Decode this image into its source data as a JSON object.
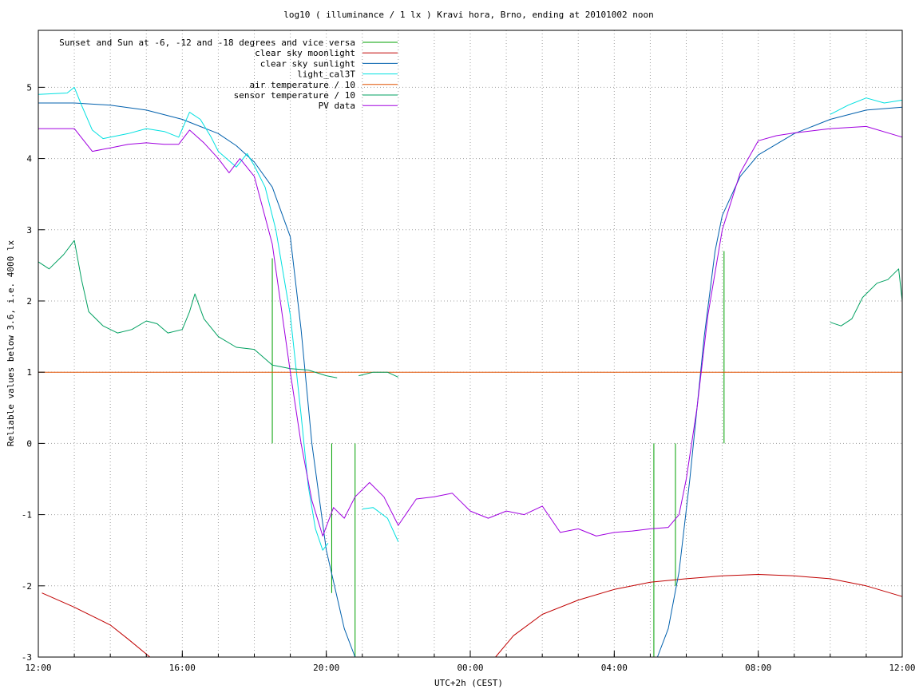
{
  "chart_data": {
    "type": "line",
    "title": "log10 ( illuminance / 1 lx ) Kravi hora, Brno, ending at 20101002 noon",
    "xlabel": "UTC+2h (CEST)",
    "ylabel": "Reliable values below 3.6, i.e. 4000 lx",
    "x_unit": "hours after 2010-10-01 12:00 (UTC+2h)",
    "xlim": [
      0,
      24
    ],
    "ylim": [
      -3,
      5.8
    ],
    "x_ticks": [
      {
        "value": 0,
        "label": "12:00"
      },
      {
        "value": 4,
        "label": "16:00"
      },
      {
        "value": 8,
        "label": "20:00"
      },
      {
        "value": 12,
        "label": "00:00"
      },
      {
        "value": 16,
        "label": "04:00"
      },
      {
        "value": 20,
        "label": "08:00"
      },
      {
        "value": 24,
        "label": "12:00"
      }
    ],
    "x_minor_grid_step": 1,
    "y_ticks": [
      -3,
      -2,
      -1,
      0,
      1,
      2,
      3,
      4,
      5
    ],
    "grid": true,
    "legend_position": "top-left",
    "series": [
      {
        "name": "Sunset and Sun at -6, -12 and -18 degrees and vice versa",
        "color": "#00a000",
        "style": "impulses",
        "points": [
          [
            6.5,
            2.6
          ],
          [
            8.15,
            -2.1
          ],
          [
            8.8,
            -3
          ],
          [
            17.1,
            -3
          ],
          [
            17.7,
            -2
          ],
          [
            19.05,
            2.7
          ]
        ]
      },
      {
        "name": "clear sky moonlight",
        "color": "#c00000",
        "points": [
          [
            0.1,
            -2.1
          ],
          [
            1,
            -2.3
          ],
          [
            2,
            -2.55
          ],
          [
            2.5,
            -2.75
          ],
          [
            3.1,
            -3
          ],
          [
            null,
            null
          ],
          [
            12.7,
            -3
          ],
          [
            13.2,
            -2.7
          ],
          [
            14,
            -2.4
          ],
          [
            15,
            -2.2
          ],
          [
            16,
            -2.05
          ],
          [
            17,
            -1.95
          ],
          [
            18,
            -1.9
          ],
          [
            19,
            -1.86
          ],
          [
            20,
            -1.84
          ],
          [
            21,
            -1.86
          ],
          [
            22,
            -1.9
          ],
          [
            23,
            -2
          ],
          [
            24,
            -2.15
          ]
        ]
      },
      {
        "name": "clear sky sunlight",
        "color": "#0060ad",
        "points": [
          [
            0,
            4.78
          ],
          [
            1,
            4.78
          ],
          [
            2,
            4.75
          ],
          [
            3,
            4.68
          ],
          [
            4,
            4.55
          ],
          [
            5,
            4.35
          ],
          [
            5.5,
            4.18
          ],
          [
            6,
            3.95
          ],
          [
            6.5,
            3.6
          ],
          [
            7,
            2.9
          ],
          [
            7.3,
            1.6
          ],
          [
            7.6,
            0
          ],
          [
            8,
            -1.5
          ],
          [
            8.5,
            -2.6
          ],
          [
            8.8,
            -3
          ],
          [
            null,
            null
          ],
          [
            17.2,
            -3
          ],
          [
            17.5,
            -2.6
          ],
          [
            17.8,
            -1.8
          ],
          [
            18.1,
            -0.5
          ],
          [
            18.5,
            1.5
          ],
          [
            18.8,
            2.7
          ],
          [
            19,
            3.2
          ],
          [
            19.5,
            3.75
          ],
          [
            20,
            4.05
          ],
          [
            21,
            4.35
          ],
          [
            22,
            4.55
          ],
          [
            23,
            4.68
          ],
          [
            24,
            4.72
          ]
        ]
      },
      {
        "name": "light_cal3T",
        "color": "#00e0e0",
        "points": [
          [
            0,
            4.9
          ],
          [
            0.8,
            4.92
          ],
          [
            1,
            5
          ],
          [
            1.2,
            4.75
          ],
          [
            1.5,
            4.4
          ],
          [
            1.8,
            4.28
          ],
          [
            2.5,
            4.35
          ],
          [
            3,
            4.42
          ],
          [
            3.5,
            4.38
          ],
          [
            3.9,
            4.3
          ],
          [
            4.2,
            4.65
          ],
          [
            4.5,
            4.55
          ],
          [
            4.8,
            4.3
          ],
          [
            5,
            4.1
          ],
          [
            5.5,
            3.88
          ],
          [
            5.8,
            4.07
          ],
          [
            6,
            3.9
          ],
          [
            6.3,
            3.6
          ],
          [
            6.6,
            3.0
          ],
          [
            7,
            1.8
          ],
          [
            7.3,
            0.4
          ],
          [
            7.5,
            -0.6
          ],
          [
            7.7,
            -1.2
          ],
          [
            7.9,
            -1.5
          ],
          [
            8.05,
            -1.4
          ],
          [
            null,
            null
          ],
          [
            9.0,
            -0.92
          ],
          [
            9.3,
            -0.9
          ],
          [
            9.7,
            -1.05
          ],
          [
            10.0,
            -1.38
          ],
          [
            null,
            null
          ],
          [
            22,
            4.62
          ],
          [
            22.5,
            4.75
          ],
          [
            23,
            4.85
          ],
          [
            23.5,
            4.78
          ],
          [
            24,
            4.82
          ]
        ]
      },
      {
        "name": "air temperature / 10",
        "color": "#e05000",
        "points": [
          [
            0,
            1.0
          ],
          [
            24,
            1.0
          ]
        ]
      },
      {
        "name": "sensor temperature / 10",
        "color": "#00a060",
        "points": [
          [
            0,
            2.55
          ],
          [
            0.3,
            2.45
          ],
          [
            0.7,
            2.65
          ],
          [
            1.0,
            2.85
          ],
          [
            1.2,
            2.3
          ],
          [
            1.4,
            1.85
          ],
          [
            1.8,
            1.65
          ],
          [
            2.2,
            1.55
          ],
          [
            2.6,
            1.6
          ],
          [
            3.0,
            1.72
          ],
          [
            3.3,
            1.68
          ],
          [
            3.6,
            1.55
          ],
          [
            4.0,
            1.6
          ],
          [
            4.2,
            1.85
          ],
          [
            4.35,
            2.1
          ],
          [
            4.6,
            1.75
          ],
          [
            5.0,
            1.5
          ],
          [
            5.5,
            1.35
          ],
          [
            6.0,
            1.32
          ],
          [
            6.5,
            1.1
          ],
          [
            7.0,
            1.05
          ],
          [
            7.5,
            1.03
          ],
          [
            8.0,
            0.95
          ],
          [
            8.3,
            0.92
          ],
          [
            null,
            null
          ],
          [
            8.9,
            0.95
          ],
          [
            9.3,
            1.0
          ],
          [
            9.7,
            1.0
          ],
          [
            10.0,
            0.93
          ],
          [
            null,
            null
          ],
          [
            22.0,
            1.7
          ],
          [
            22.3,
            1.65
          ],
          [
            22.6,
            1.75
          ],
          [
            22.9,
            2.05
          ],
          [
            23.3,
            2.25
          ],
          [
            23.6,
            2.3
          ],
          [
            23.9,
            2.45
          ],
          [
            24.0,
            2.0
          ]
        ]
      },
      {
        "name": "PV data",
        "color": "#a000e0",
        "points": [
          [
            0,
            4.42
          ],
          [
            1,
            4.42
          ],
          [
            1.5,
            4.1
          ],
          [
            2,
            4.15
          ],
          [
            2.5,
            4.2
          ],
          [
            3,
            4.22
          ],
          [
            3.5,
            4.2
          ],
          [
            3.9,
            4.2
          ],
          [
            4.2,
            4.4
          ],
          [
            4.6,
            4.22
          ],
          [
            5,
            4.0
          ],
          [
            5.3,
            3.8
          ],
          [
            5.6,
            4.0
          ],
          [
            6.0,
            3.75
          ],
          [
            6.5,
            2.8
          ],
          [
            7.0,
            1.0
          ],
          [
            7.3,
            0
          ],
          [
            7.6,
            -0.8
          ],
          [
            7.9,
            -1.3
          ],
          [
            8.2,
            -0.9
          ],
          [
            8.5,
            -1.05
          ],
          [
            8.8,
            -0.75
          ],
          [
            9.2,
            -0.55
          ],
          [
            9.6,
            -0.75
          ],
          [
            10.0,
            -1.15
          ],
          [
            10.5,
            -0.78
          ],
          [
            11.0,
            -0.75
          ],
          [
            11.5,
            -0.7
          ],
          [
            12.0,
            -0.95
          ],
          [
            12.5,
            -1.05
          ],
          [
            13.0,
            -0.95
          ],
          [
            13.5,
            -1.0
          ],
          [
            14.0,
            -0.88
          ],
          [
            14.5,
            -1.25
          ],
          [
            15.0,
            -1.2
          ],
          [
            15.5,
            -1.3
          ],
          [
            16.0,
            -1.25
          ],
          [
            16.5,
            -1.23
          ],
          [
            17.0,
            -1.2
          ],
          [
            17.5,
            -1.18
          ],
          [
            17.8,
            -1.0
          ],
          [
            18.0,
            -0.5
          ],
          [
            18.3,
            0.5
          ],
          [
            18.6,
            1.8
          ],
          [
            19.0,
            3.0
          ],
          [
            19.5,
            3.8
          ],
          [
            20.0,
            4.25
          ],
          [
            20.5,
            4.32
          ],
          [
            21,
            4.36
          ],
          [
            22,
            4.42
          ],
          [
            23,
            4.45
          ],
          [
            24,
            4.3
          ]
        ]
      }
    ]
  }
}
